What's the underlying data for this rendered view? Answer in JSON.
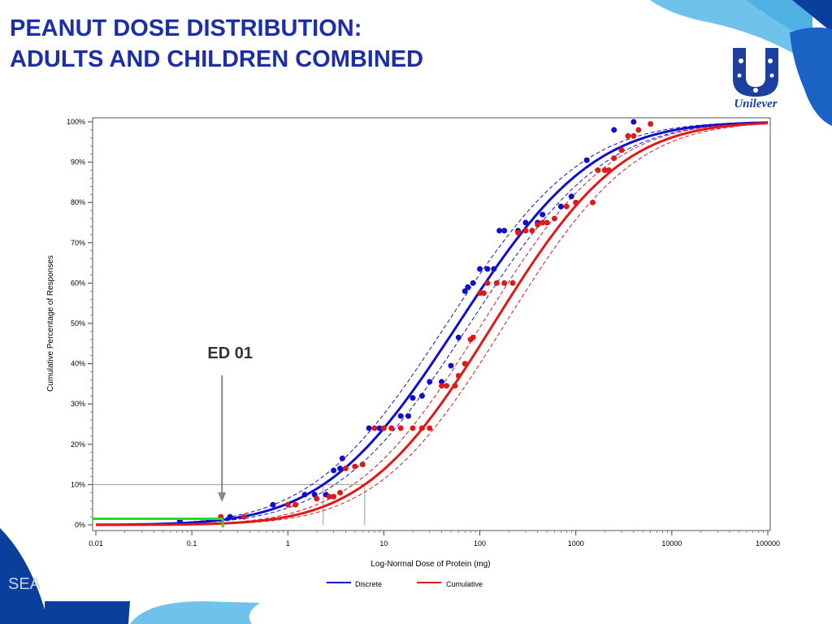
{
  "slide": {
    "title_line1": "PEANUT DOSE DISTRIBUTION:",
    "title_line2": "ADULTS AND CHILDREN COMBINED",
    "logo_text": "Unilever",
    "footer_text": "SEA"
  },
  "colors": {
    "title": "#1c2ea8",
    "discrete": "#1010cc",
    "cumulative": "#e01818",
    "ed01_marker": "#22dd22",
    "grey_arrow": "#888888",
    "deco_light_blue": "#6fc3ea",
    "deco_dark_blue": "#0a3f9e",
    "deco_mid_blue": "#1a63c4"
  },
  "chart_data": {
    "type": "line",
    "x_scale": "log",
    "xlim": [
      0.01,
      100000
    ],
    "ylim": [
      0,
      100
    ],
    "xlabel": "Log-Normal Dose of Protein (mg)",
    "ylabel": "Cumulative Percentage of Responses",
    "x_ticks": [
      "0.01",
      "0.1",
      "1",
      "10",
      "100",
      "1000",
      "10000",
      "100000"
    ],
    "y_ticks": [
      "0%",
      "10%",
      "20%",
      "30%",
      "40%",
      "50%",
      "60%",
      "70%",
      "80%",
      "90%",
      "100%"
    ],
    "legend_position": "bottom",
    "annotation": {
      "text": "ED 01",
      "x": 0.21,
      "y": 1.5
    },
    "reference_line_y": 10,
    "series": [
      {
        "name": "Discrete",
        "color": "#1010cc",
        "fit": {
          "median_mg": 60,
          "log10_sd": 1.1,
          "band_log10_offset": 0.12
        },
        "points": [
          [
            0.075,
            1
          ],
          [
            0.2,
            1.5
          ],
          [
            0.25,
            2
          ],
          [
            0.7,
            5
          ],
          [
            1.5,
            7.5
          ],
          [
            1.9,
            7.5
          ],
          [
            2.5,
            7.5
          ],
          [
            3,
            13.5
          ],
          [
            3.5,
            14
          ],
          [
            3.7,
            16.5
          ],
          [
            7,
            24
          ],
          [
            9,
            24
          ],
          [
            12,
            24
          ],
          [
            15,
            27
          ],
          [
            18,
            27
          ],
          [
            20,
            31.5
          ],
          [
            25,
            32
          ],
          [
            30,
            35.5
          ],
          [
            40,
            35.5
          ],
          [
            50,
            39.5
          ],
          [
            60,
            46.5
          ],
          [
            70,
            58
          ],
          [
            75,
            59
          ],
          [
            85,
            60
          ],
          [
            100,
            63.5
          ],
          [
            120,
            63.5
          ],
          [
            140,
            63.5
          ],
          [
            160,
            73
          ],
          [
            180,
            73
          ],
          [
            250,
            73
          ],
          [
            300,
            75
          ],
          [
            400,
            75
          ],
          [
            450,
            77
          ],
          [
            700,
            79
          ],
          [
            900,
            81.5
          ],
          [
            1300,
            90.5
          ],
          [
            2500,
            98
          ],
          [
            4000,
            100
          ]
        ]
      },
      {
        "name": "Cumulative",
        "color": "#e01818",
        "fit": {
          "median_mg": 140,
          "log10_sd": 1.05,
          "band_log10_offset": 0.12
        },
        "points": [
          [
            0.2,
            2
          ],
          [
            0.35,
            2
          ],
          [
            1,
            5
          ],
          [
            1.2,
            5
          ],
          [
            2,
            6.5
          ],
          [
            2.7,
            7
          ],
          [
            3,
            7
          ],
          [
            3.5,
            8
          ],
          [
            4,
            14
          ],
          [
            5,
            14.5
          ],
          [
            6,
            15
          ],
          [
            8,
            24
          ],
          [
            10,
            24
          ],
          [
            12,
            24
          ],
          [
            15,
            24
          ],
          [
            20,
            24
          ],
          [
            25,
            24
          ],
          [
            30,
            24
          ],
          [
            40,
            34.5
          ],
          [
            45,
            34.5
          ],
          [
            55,
            34.5
          ],
          [
            60,
            37
          ],
          [
            70,
            40
          ],
          [
            80,
            46
          ],
          [
            85,
            46.5
          ],
          [
            100,
            57.5
          ],
          [
            110,
            57.5
          ],
          [
            120,
            60
          ],
          [
            150,
            60
          ],
          [
            180,
            60
          ],
          [
            220,
            60
          ],
          [
            250,
            72.5
          ],
          [
            300,
            73
          ],
          [
            350,
            73
          ],
          [
            400,
            74.5
          ],
          [
            450,
            75
          ],
          [
            500,
            75
          ],
          [
            600,
            76
          ],
          [
            800,
            79
          ],
          [
            1000,
            80
          ],
          [
            1500,
            80
          ],
          [
            1700,
            88
          ],
          [
            2000,
            88
          ],
          [
            2200,
            88
          ],
          [
            2500,
            91
          ],
          [
            3000,
            93
          ],
          [
            3500,
            96.5
          ],
          [
            4000,
            96.5
          ],
          [
            4500,
            98
          ],
          [
            6000,
            99.5
          ]
        ]
      }
    ]
  }
}
